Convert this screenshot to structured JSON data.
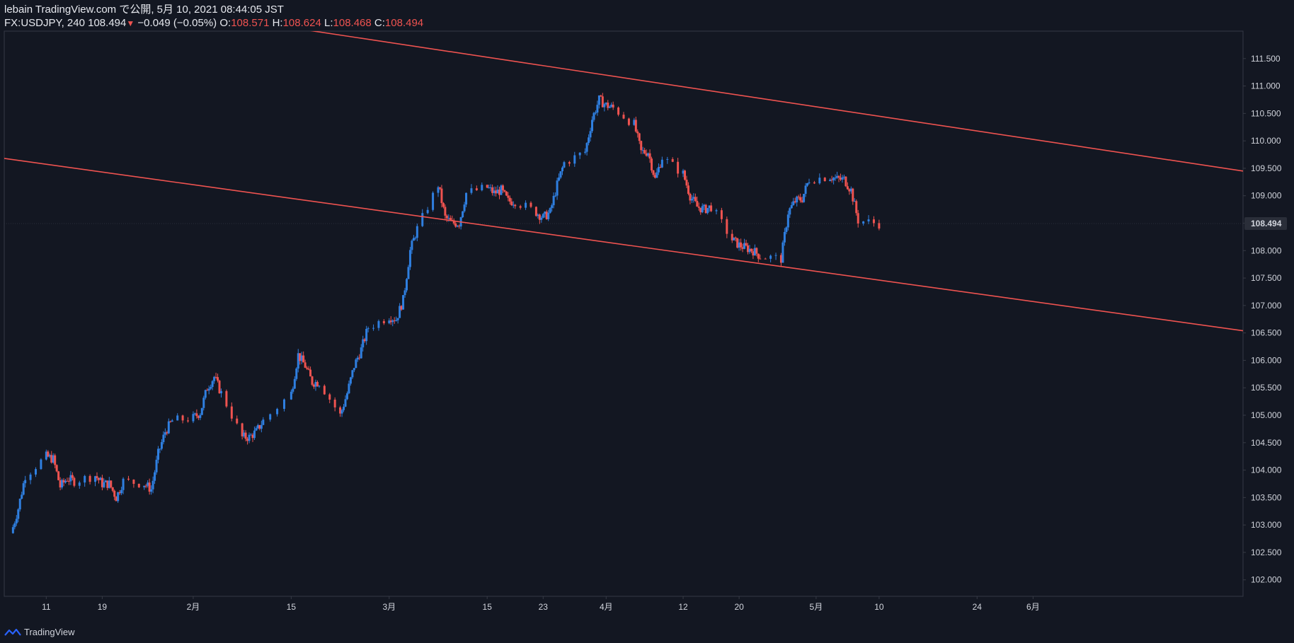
{
  "header": {
    "publish_line": "lebain TradingView.com で公開, 5月 10, 2021 08:44:05 JST",
    "symbol": "FX:USDJPY, 240",
    "last_price": "108.494",
    "change": "−0.049 (−0.05%)",
    "o_label": "O:",
    "o_value": "108.571",
    "h_label": "H:",
    "h_value": "108.624",
    "l_label": "L:",
    "l_value": "108.468",
    "c_label": "C:",
    "c_value": "108.494"
  },
  "footer": {
    "brand": "TradingView"
  },
  "colors": {
    "background": "#131722",
    "up": "#2f7fe0",
    "down": "#ef5350",
    "trendline": "#ef5350",
    "axis_text": "#d1d4dc",
    "last_price_tag": "#2a2e39"
  },
  "chart_data": {
    "type": "candlestick",
    "symbol": "FX:USDJPY",
    "interval": "240",
    "y_axis_side": "right",
    "ylim": [
      101.7,
      112.0
    ],
    "y_ticks": [
      102.0,
      102.5,
      103.0,
      103.5,
      104.0,
      104.5,
      105.0,
      105.5,
      106.0,
      106.5,
      107.0,
      107.5,
      108.0,
      108.5,
      109.0,
      109.5,
      110.0,
      110.5,
      111.0,
      111.5
    ],
    "y_tick_labels": [
      "102.000",
      "102.500",
      "103.000",
      "103.500",
      "104.000",
      "104.500",
      "105.000",
      "105.500",
      "106.000",
      "106.500",
      "107.000",
      "107.500",
      "108.000",
      "108.500",
      "109.000",
      "109.500",
      "110.000",
      "110.500",
      "111.000",
      "111.500"
    ],
    "last_price_label": "108.494",
    "x_range": [
      "2021-01-05",
      "2021-07-01"
    ],
    "x_ticks": [
      {
        "date": "2021-01-11",
        "label": "11"
      },
      {
        "date": "2021-01-19",
        "label": "19"
      },
      {
        "date": "2021-02-01",
        "label": "2月"
      },
      {
        "date": "2021-02-15",
        "label": "15"
      },
      {
        "date": "2021-03-01",
        "label": "3月"
      },
      {
        "date": "2021-03-15",
        "label": "15"
      },
      {
        "date": "2021-03-23",
        "label": "23"
      },
      {
        "date": "2021-04-01",
        "label": "4月"
      },
      {
        "date": "2021-04-12",
        "label": "12"
      },
      {
        "date": "2021-04-20",
        "label": "20"
      },
      {
        "date": "2021-05-01",
        "label": "5月"
      },
      {
        "date": "2021-05-10",
        "label": "10"
      },
      {
        "date": "2021-05-24",
        "label": "24"
      },
      {
        "date": "2021-06-01",
        "label": "6月"
      }
    ],
    "price_path": [
      [
        "2021-01-06",
        102.85
      ],
      [
        "2021-01-07",
        103.3
      ],
      [
        "2021-01-08",
        103.9
      ],
      [
        "2021-01-11",
        104.25
      ],
      [
        "2021-01-12",
        104.2
      ],
      [
        "2021-01-13",
        103.7
      ],
      [
        "2021-01-14",
        103.85
      ],
      [
        "2021-01-15",
        103.8
      ],
      [
        "2021-01-18",
        103.9
      ],
      [
        "2021-01-19",
        103.75
      ],
      [
        "2021-01-20",
        103.75
      ],
      [
        "2021-01-21",
        103.5
      ],
      [
        "2021-01-22",
        103.8
      ],
      [
        "2021-01-25",
        103.75
      ],
      [
        "2021-01-26",
        103.65
      ],
      [
        "2021-01-27",
        104.3
      ],
      [
        "2021-01-28",
        104.7
      ],
      [
        "2021-01-29",
        104.9
      ],
      [
        "2021-02-01",
        104.95
      ],
      [
        "2021-02-02",
        105.05
      ],
      [
        "2021-02-03",
        105.5
      ],
      [
        "2021-02-04",
        105.7
      ],
      [
        "2021-02-05",
        105.4
      ],
      [
        "2021-02-08",
        104.6
      ],
      [
        "2021-02-09",
        104.6
      ],
      [
        "2021-02-10",
        104.7
      ],
      [
        "2021-02-11",
        104.9
      ],
      [
        "2021-02-15",
        105.4
      ],
      [
        "2021-02-16",
        106.1
      ],
      [
        "2021-02-17",
        105.9
      ],
      [
        "2021-02-18",
        105.6
      ],
      [
        "2021-02-19",
        105.6
      ],
      [
        "2021-02-22",
        105.0
      ],
      [
        "2021-02-23",
        105.4
      ],
      [
        "2021-02-24",
        105.9
      ],
      [
        "2021-02-25",
        106.2
      ],
      [
        "2021-02-26",
        106.6
      ],
      [
        "2021-03-01",
        106.8
      ],
      [
        "2021-03-02",
        106.75
      ],
      [
        "2021-03-03",
        107.1
      ],
      [
        "2021-03-04",
        108.0
      ],
      [
        "2021-03-05",
        108.4
      ],
      [
        "2021-03-08",
        109.2
      ],
      [
        "2021-03-09",
        108.6
      ],
      [
        "2021-03-10",
        108.5
      ],
      [
        "2021-03-11",
        108.5
      ],
      [
        "2021-03-12",
        109.05
      ],
      [
        "2021-03-15",
        109.15
      ],
      [
        "2021-03-16",
        109.05
      ],
      [
        "2021-03-17",
        109.1
      ],
      [
        "2021-03-18",
        108.9
      ],
      [
        "2021-03-19",
        108.9
      ],
      [
        "2021-03-22",
        108.7
      ],
      [
        "2021-03-23",
        108.6
      ],
      [
        "2021-03-24",
        108.7
      ],
      [
        "2021-03-25",
        109.2
      ],
      [
        "2021-03-26",
        109.6
      ],
      [
        "2021-03-29",
        109.8
      ],
      [
        "2021-03-30",
        110.4
      ],
      [
        "2021-03-31",
        110.75
      ],
      [
        "2021-04-01",
        110.65
      ],
      [
        "2021-04-02",
        110.6
      ],
      [
        "2021-04-05",
        110.3
      ],
      [
        "2021-04-06",
        109.8
      ],
      [
        "2021-04-07",
        109.8
      ],
      [
        "2021-04-08",
        109.3
      ],
      [
        "2021-04-09",
        109.7
      ],
      [
        "2021-04-12",
        109.4
      ],
      [
        "2021-04-13",
        109.0
      ],
      [
        "2021-04-14",
        108.8
      ],
      [
        "2021-04-15",
        108.75
      ],
      [
        "2021-04-16",
        108.8
      ],
      [
        "2021-04-19",
        108.2
      ],
      [
        "2021-04-20",
        108.1
      ],
      [
        "2021-04-21",
        108.05
      ],
      [
        "2021-04-22",
        108.0
      ],
      [
        "2021-04-23",
        107.9
      ],
      [
        "2021-04-26",
        107.85
      ],
      [
        "2021-04-27",
        108.7
      ],
      [
        "2021-04-28",
        108.9
      ],
      [
        "2021-04-29",
        108.95
      ],
      [
        "2021-04-30",
        109.3
      ],
      [
        "2021-05-03",
        109.35
      ],
      [
        "2021-05-04",
        109.3
      ],
      [
        "2021-05-05",
        109.3
      ],
      [
        "2021-05-06",
        109.1
      ],
      [
        "2021-05-07",
        108.55
      ],
      [
        "2021-05-10",
        108.49
      ]
    ],
    "trendlines": [
      {
        "name": "",
        "x1": "2021-01-05",
        "y1": 112.85,
        "x2": "2021-07-01",
        "y2": 109.45
      },
      {
        "name": "",
        "x1": "2021-01-05",
        "y1": 109.68,
        "x2": "2021-07-01",
        "y2": 106.54
      }
    ]
  }
}
